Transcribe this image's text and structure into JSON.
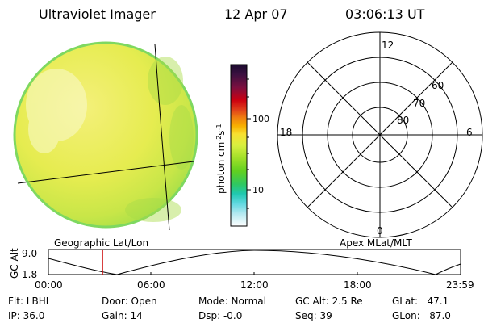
{
  "header": {
    "title": "Ultraviolet Imager",
    "date": "12 Apr 07",
    "time": "03:06:13 UT"
  },
  "colorbar": {
    "ticks": [
      "100",
      "10"
    ],
    "unit_label": "photon cm-2s-1",
    "colors_top_to_bottom": [
      "#1a0a2e",
      "#3b1040",
      "#6a1040",
      "#9a0a20",
      "#cc0010",
      "#e0401a",
      "#f08010",
      "#f8b000",
      "#f8e030",
      "#e0f040",
      "#b0e028",
      "#80d820",
      "#50d020",
      "#30c850",
      "#20c8a0",
      "#40d0d0",
      "#90e0e8",
      "#c0eef0",
      "#e8f6f8",
      "#ffffff"
    ]
  },
  "image_panel": {
    "label": "Geographic Lat/Lon",
    "disk_color": "#e6ec50",
    "edge_color": "#7ed860"
  },
  "polar_panel": {
    "label": "Apex MLat/MLT",
    "mlt_labels": {
      "top": "12",
      "bottom": "0",
      "left": "18",
      "right": "6"
    },
    "lat_labels": [
      "60",
      "70",
      "80"
    ]
  },
  "timeline": {
    "ylabel": "GC Alt",
    "ytop": "9.0",
    "ybottom": "1.8",
    "xticks": [
      "00:00",
      "06:00",
      "12:00",
      "18:00",
      "23:59"
    ],
    "marker_color": "#cc0000"
  },
  "info": {
    "filter": "Flt: LBHL",
    "ip": "IP: 36.0",
    "door": "Door: Open",
    "gain": "Gain: 14",
    "mode": "Mode: Normal",
    "dsp": "Dsp:  -0.0",
    "gc_alt": "GC Alt: 2.5 Re",
    "seq": "Seq: 39",
    "glat": "GLat:   47.1",
    "glon": "GLon:   87.0"
  }
}
